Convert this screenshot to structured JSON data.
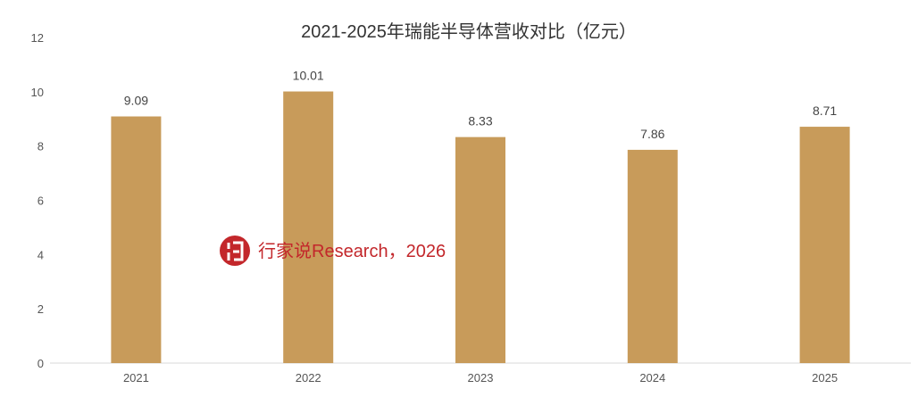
{
  "chart_data": {
    "type": "bar",
    "title": "2021-2025年瑞能半导体营收对比（亿元）",
    "categories": [
      "2021",
      "2022",
      "2023",
      "2024",
      "2025"
    ],
    "values": [
      9.09,
      10.01,
      8.33,
      7.86,
      8.71
    ],
    "value_labels": [
      "9.09",
      "10.01",
      "8.33",
      "7.86",
      "8.71"
    ],
    "y_ticks": [
      0,
      2,
      4,
      6,
      8,
      10,
      12
    ],
    "ylim": [
      0,
      12
    ],
    "xlabel": "",
    "ylabel": "",
    "grid": false,
    "legend": "none",
    "bar_color": "#C89B5A"
  },
  "watermark": {
    "logo_icon": "xjs-logo-icon",
    "text": "行家说Research，2026",
    "color": "#C3272B"
  }
}
